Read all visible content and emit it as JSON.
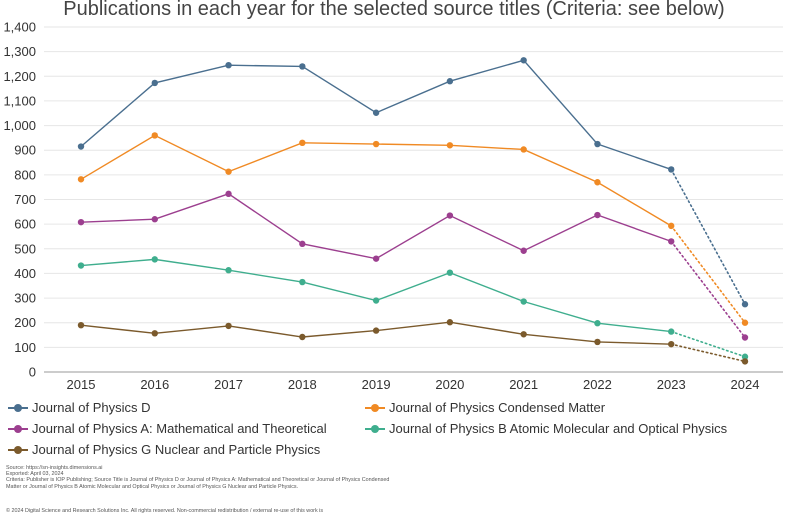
{
  "chart_data": {
    "type": "line",
    "title": "Publications in each year for the selected source titles (Criteria: see below)",
    "xlabel": "",
    "ylabel": "",
    "categories": [
      "2015",
      "2016",
      "2017",
      "2018",
      "2019",
      "2020",
      "2021",
      "2022",
      "2023",
      "2024"
    ],
    "ylim": [
      0,
      1400
    ],
    "yticks": [
      0,
      100,
      200,
      300,
      400,
      500,
      600,
      700,
      800,
      900,
      1000,
      1100,
      1200,
      1300,
      1400
    ],
    "ytick_labels": [
      "0",
      "100",
      "200",
      "300",
      "400",
      "500",
      "600",
      "700",
      "800",
      "900",
      "1,000",
      "1,100",
      "1,200",
      "1,300",
      "1,400"
    ],
    "grid": true,
    "legend_position": "bottom",
    "dotted_last_segment": true,
    "series": [
      {
        "name": "Journal of Physics D",
        "color": "#4a6f8f",
        "values": [
          915,
          1173,
          1245,
          1240,
          1052,
          1180,
          1265,
          925,
          822,
          275
        ]
      },
      {
        "name": "Journal of Physics Condensed Matter",
        "color": "#f08a24",
        "values": [
          782,
          960,
          813,
          930,
          925,
          920,
          903,
          770,
          593,
          200
        ]
      },
      {
        "name": "Journal of Physics A: Mathematical and Theoretical",
        "color": "#9c3f8f",
        "values": [
          608,
          620,
          723,
          520,
          460,
          635,
          492,
          637,
          530,
          140
        ]
      },
      {
        "name": "Journal of Physics B Atomic Molecular and Optical Physics",
        "color": "#3fae8e",
        "values": [
          432,
          457,
          413,
          365,
          290,
          403,
          286,
          198,
          164,
          62
        ]
      },
      {
        "name": "Journal of Physics G Nuclear and Particle Physics",
        "color": "#7b5a2c",
        "values": [
          190,
          157,
          187,
          142,
          168,
          202,
          153,
          122,
          113,
          43
        ]
      }
    ]
  },
  "footer": {
    "source": "Source: https://sn-insights.dimensions.ai",
    "exported": "Exported: April 03, 2024",
    "criteria": "Criteria: Publisher is IOP Publishing; Source Title is Journal of Physics D or Journal of Physics A: Mathematical and Theoretical or Journal of Physics Condensed Matter or Journal of Physics B Atomic Molecular and Optical Physics or Journal of Physics G Nuclear and Particle Physics.",
    "copyright": "© 2024 Digital Science and Research Solutions Inc. All rights reserved. Non-commercial redistribution / external re-use of this work is"
  }
}
